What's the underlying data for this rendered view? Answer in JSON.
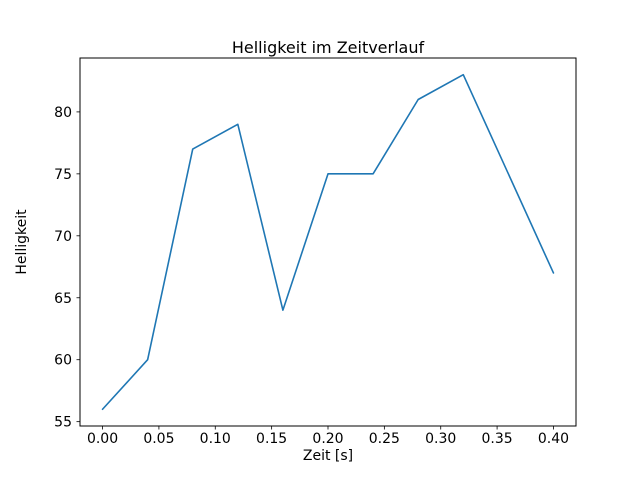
{
  "chart_data": {
    "type": "line",
    "title": "Helligkeit im Zeitverlauf",
    "xlabel": "Zeit [s]",
    "ylabel": "Helligkeit",
    "x": [
      0.0,
      0.04,
      0.08,
      0.12,
      0.16,
      0.2,
      0.24,
      0.28,
      0.32,
      0.36,
      0.4
    ],
    "y": [
      56,
      60,
      77,
      79,
      64,
      75,
      75,
      81,
      83,
      75,
      67
    ],
    "x_ticks": [
      0.0,
      0.05,
      0.1,
      0.15,
      0.2,
      0.25,
      0.3,
      0.35,
      0.4
    ],
    "y_ticks": [
      55,
      60,
      65,
      70,
      75,
      80
    ],
    "xlim": [
      -0.02,
      0.42
    ],
    "ylim": [
      54.65,
      84.35
    ],
    "grid": false,
    "legend": "none",
    "line_color": "#1f77b4",
    "axes_color": "#000000",
    "background_color": "#ffffff"
  }
}
